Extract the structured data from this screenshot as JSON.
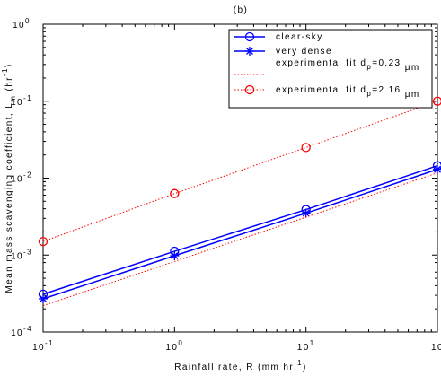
{
  "chart_data": {
    "type": "line",
    "title": "(b)",
    "xlabel": [
      "Rainfall rate, R (mm hr",
      "-1",
      ")"
    ],
    "ylabel": [
      "Mean mass scavenging coefficient, L",
      "m",
      " (hr",
      "-1",
      ")"
    ],
    "xscale": "log",
    "yscale": "log",
    "xlim": [
      0.1,
      100
    ],
    "ylim": [
      0.0001,
      1
    ],
    "xticks": [
      {
        "value": 0.1,
        "label": "10",
        "exponent": "-1"
      },
      {
        "value": 1,
        "label": "10",
        "exponent": "0"
      },
      {
        "value": 10,
        "label": "10",
        "exponent": "1"
      },
      {
        "value": 100,
        "label": "10"
      }
    ],
    "yticks": [
      {
        "value": 0.0001,
        "label": "10",
        "exponent": "-4"
      },
      {
        "value": 0.001,
        "label": "10",
        "exponent": "-3"
      },
      {
        "value": 0.01,
        "label": "10",
        "exponent": "-2"
      },
      {
        "value": 0.1,
        "label": "10",
        "exponent": "-1"
      },
      {
        "value": 1,
        "label": "10",
        "exponent": "0"
      }
    ],
    "legend": "upper right",
    "series": [
      {
        "name": "clear-sky",
        "color": "#0000ff",
        "line": "solid",
        "marker": "circle",
        "x": [
          0.1,
          1,
          10,
          100
        ],
        "values": [
          0.00031,
          0.00112,
          0.0039,
          0.0145
        ]
      },
      {
        "name": "very dense",
        "color": "#0000ff",
        "line": "solid",
        "marker": "star",
        "x": [
          0.1,
          1,
          10,
          100
        ],
        "values": [
          0.00027,
          0.00098,
          0.0035,
          0.013
        ]
      },
      {
        "name": [
          "experimental fit d",
          "p",
          "=0.23 ",
          "μm"
        ],
        "color": "#ff0000",
        "line": "dotted",
        "marker": "none",
        "x": [
          0.1,
          100
        ],
        "values": [
          0.00022,
          0.0117
        ]
      },
      {
        "name": [
          "experimental fit d",
          "p",
          "=2.16 ",
          "μm"
        ],
        "color": "#ff0000",
        "line": "dotted",
        "marker": "circle",
        "x": [
          0.1,
          1,
          10,
          100
        ],
        "values": [
          0.0015,
          0.0063,
          0.025,
          0.1
        ]
      }
    ]
  }
}
